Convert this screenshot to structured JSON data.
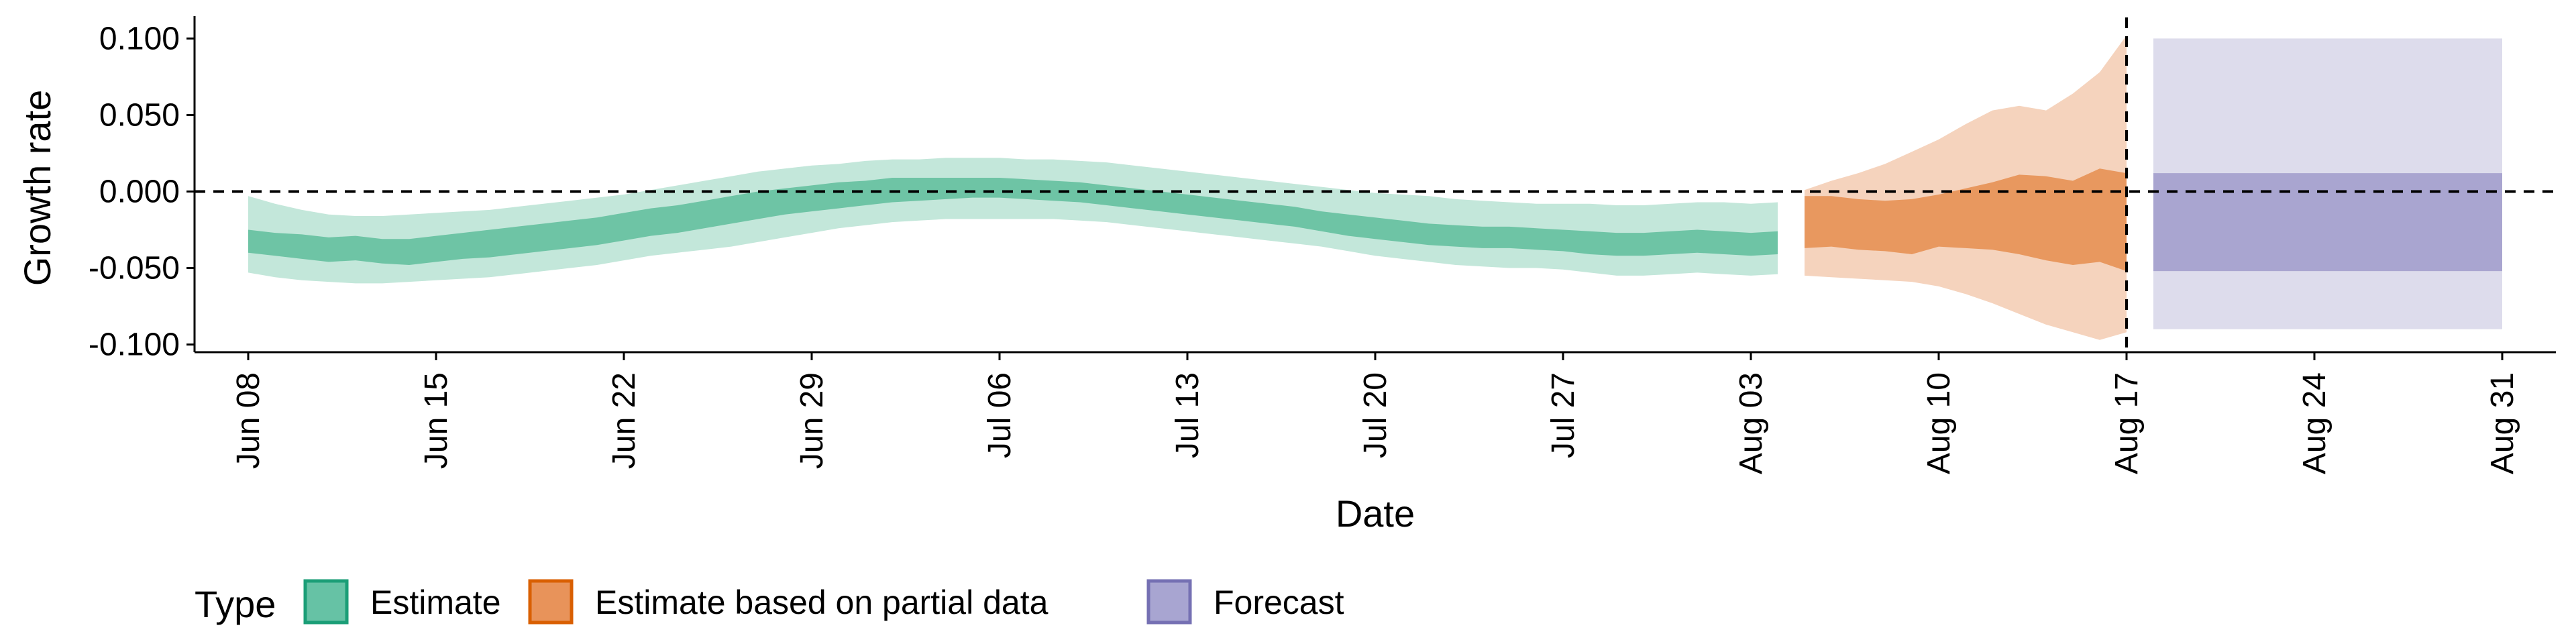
{
  "chart_data": {
    "type": "area",
    "xlabel": "Date",
    "ylabel": "Growth rate",
    "ylim": [
      -0.105,
      0.112
    ],
    "yticks": [
      "0.100",
      "0.050",
      "0.000",
      "-0.050",
      "-0.100"
    ],
    "ytick_values": [
      0.1,
      0.05,
      0.0,
      -0.05,
      -0.1
    ],
    "xlim": [
      "2020-06-06",
      "2020-09-02"
    ],
    "xticks": [
      "Jun 08",
      "Jun 15",
      "Jun 22",
      "Jun 29",
      "Jul 06",
      "Jul 13",
      "Jul 20",
      "Jul 27",
      "Aug 03",
      "Aug 10",
      "Aug 17",
      "Aug 24",
      "Aug 31"
    ],
    "xtick_dates": [
      "2020-06-08",
      "2020-06-15",
      "2020-06-22",
      "2020-06-29",
      "2020-07-06",
      "2020-07-13",
      "2020-07-20",
      "2020-07-27",
      "2020-08-03",
      "2020-08-10",
      "2020-08-17",
      "2020-08-24",
      "2020-08-31"
    ],
    "hline": 0.0,
    "vline": "2020-08-17",
    "grid": false,
    "legend": {
      "title": "Type",
      "position": "bottom-left",
      "items": [
        {
          "label": "Estimate",
          "fill": "#66C2A5",
          "stroke": "#1B9E77"
        },
        {
          "label": "Estimate based on partial data",
          "fill": "#E8935A",
          "stroke": "#D95F02"
        },
        {
          "label": "Forecast",
          "fill": "#A8A5D1",
          "stroke": "#7570B3"
        }
      ]
    },
    "series": [
      {
        "name": "Estimate",
        "color_outer": "#C3E7DA",
        "color_inner": "#6EC4A5",
        "dates": [
          "2020-06-08",
          "2020-06-09",
          "2020-06-10",
          "2020-06-11",
          "2020-06-12",
          "2020-06-13",
          "2020-06-14",
          "2020-06-15",
          "2020-06-16",
          "2020-06-17",
          "2020-06-18",
          "2020-06-19",
          "2020-06-20",
          "2020-06-21",
          "2020-06-22",
          "2020-06-23",
          "2020-06-24",
          "2020-06-25",
          "2020-06-26",
          "2020-06-27",
          "2020-06-28",
          "2020-06-29",
          "2020-06-30",
          "2020-07-01",
          "2020-07-02",
          "2020-07-03",
          "2020-07-04",
          "2020-07-05",
          "2020-07-06",
          "2020-07-07",
          "2020-07-08",
          "2020-07-09",
          "2020-07-10",
          "2020-07-11",
          "2020-07-12",
          "2020-07-13",
          "2020-07-14",
          "2020-07-15",
          "2020-07-16",
          "2020-07-17",
          "2020-07-18",
          "2020-07-19",
          "2020-07-20",
          "2020-07-21",
          "2020-07-22",
          "2020-07-23",
          "2020-07-24",
          "2020-07-25",
          "2020-07-26",
          "2020-07-27",
          "2020-07-28",
          "2020-07-29",
          "2020-07-30",
          "2020-07-31",
          "2020-08-01",
          "2020-08-02",
          "2020-08-03",
          "2020-08-04"
        ],
        "lower_90": [
          -0.053,
          -0.056,
          -0.058,
          -0.059,
          -0.06,
          -0.06,
          -0.059,
          -0.058,
          -0.057,
          -0.056,
          -0.054,
          -0.052,
          -0.05,
          -0.048,
          -0.045,
          -0.042,
          -0.04,
          -0.038,
          -0.036,
          -0.033,
          -0.03,
          -0.027,
          -0.024,
          -0.022,
          -0.02,
          -0.019,
          -0.018,
          -0.018,
          -0.018,
          -0.018,
          -0.018,
          -0.019,
          -0.02,
          -0.022,
          -0.024,
          -0.026,
          -0.028,
          -0.03,
          -0.032,
          -0.034,
          -0.036,
          -0.039,
          -0.042,
          -0.044,
          -0.046,
          -0.048,
          -0.049,
          -0.05,
          -0.05,
          -0.051,
          -0.053,
          -0.055,
          -0.055,
          -0.054,
          -0.053,
          -0.054,
          -0.055,
          -0.054
        ],
        "lower_50": [
          -0.04,
          -0.042,
          -0.044,
          -0.046,
          -0.045,
          -0.047,
          -0.048,
          -0.046,
          -0.044,
          -0.043,
          -0.041,
          -0.039,
          -0.037,
          -0.035,
          -0.032,
          -0.029,
          -0.027,
          -0.024,
          -0.021,
          -0.018,
          -0.015,
          -0.013,
          -0.011,
          -0.009,
          -0.007,
          -0.006,
          -0.005,
          -0.004,
          -0.004,
          -0.005,
          -0.006,
          -0.007,
          -0.009,
          -0.011,
          -0.013,
          -0.015,
          -0.017,
          -0.019,
          -0.021,
          -0.023,
          -0.026,
          -0.029,
          -0.031,
          -0.033,
          -0.035,
          -0.036,
          -0.037,
          -0.037,
          -0.038,
          -0.039,
          -0.041,
          -0.042,
          -0.042,
          -0.041,
          -0.04,
          -0.041,
          -0.042,
          -0.041
        ],
        "upper_50": [
          -0.025,
          -0.027,
          -0.028,
          -0.03,
          -0.029,
          -0.031,
          -0.031,
          -0.029,
          -0.027,
          -0.025,
          -0.023,
          -0.021,
          -0.019,
          -0.017,
          -0.014,
          -0.011,
          -0.009,
          -0.006,
          -0.003,
          0.0,
          0.002,
          0.004,
          0.006,
          0.007,
          0.009,
          0.009,
          0.009,
          0.009,
          0.009,
          0.008,
          0.007,
          0.006,
          0.004,
          0.002,
          0.0,
          -0.002,
          -0.004,
          -0.006,
          -0.008,
          -0.01,
          -0.013,
          -0.015,
          -0.017,
          -0.019,
          -0.021,
          -0.022,
          -0.023,
          -0.023,
          -0.024,
          -0.025,
          -0.026,
          -0.027,
          -0.027,
          -0.026,
          -0.025,
          -0.026,
          -0.027,
          -0.026
        ],
        "upper_90": [
          -0.003,
          -0.008,
          -0.012,
          -0.015,
          -0.016,
          -0.016,
          -0.015,
          -0.014,
          -0.013,
          -0.012,
          -0.01,
          -0.008,
          -0.006,
          -0.004,
          -0.002,
          0.001,
          0.004,
          0.007,
          0.01,
          0.013,
          0.015,
          0.017,
          0.018,
          0.02,
          0.021,
          0.021,
          0.022,
          0.022,
          0.022,
          0.021,
          0.021,
          0.02,
          0.019,
          0.017,
          0.015,
          0.013,
          0.011,
          0.009,
          0.007,
          0.005,
          0.003,
          0.001,
          -0.001,
          -0.002,
          -0.003,
          -0.005,
          -0.006,
          -0.007,
          -0.008,
          -0.008,
          -0.008,
          -0.009,
          -0.009,
          -0.008,
          -0.007,
          -0.007,
          -0.008,
          -0.007
        ]
      },
      {
        "name": "Estimate based on partial data",
        "color_outer": "#F5D3BD",
        "color_inner": "#E8985F",
        "dates": [
          "2020-08-05",
          "2020-08-06",
          "2020-08-07",
          "2020-08-08",
          "2020-08-09",
          "2020-08-10",
          "2020-08-11",
          "2020-08-12",
          "2020-08-13",
          "2020-08-14",
          "2020-08-15",
          "2020-08-16",
          "2020-08-17"
        ],
        "lower_90": [
          -0.055,
          -0.056,
          -0.057,
          -0.058,
          -0.059,
          -0.062,
          -0.067,
          -0.073,
          -0.08,
          -0.087,
          -0.092,
          -0.097,
          -0.092
        ],
        "lower_50": [
          -0.037,
          -0.036,
          -0.038,
          -0.039,
          -0.041,
          -0.036,
          -0.037,
          -0.038,
          -0.041,
          -0.045,
          -0.048,
          -0.046,
          -0.052
        ],
        "upper_50": [
          -0.003,
          -0.003,
          -0.005,
          -0.006,
          -0.005,
          -0.002,
          0.002,
          0.006,
          0.011,
          0.01,
          0.007,
          0.015,
          0.012
        ],
        "upper_90": [
          0.001,
          0.007,
          0.012,
          0.018,
          0.026,
          0.034,
          0.044,
          0.053,
          0.056,
          0.053,
          0.064,
          0.078,
          0.102
        ]
      },
      {
        "name": "Forecast",
        "color_outer": "#DDDCEC",
        "color_inner": "#A9A5D0",
        "dates": [
          "2020-08-18",
          "2020-08-31"
        ],
        "lower_90": [
          -0.09,
          -0.09
        ],
        "lower_50": [
          -0.052,
          -0.052
        ],
        "upper_50": [
          0.012,
          0.012
        ],
        "upper_90": [
          0.1,
          0.1
        ]
      }
    ]
  }
}
